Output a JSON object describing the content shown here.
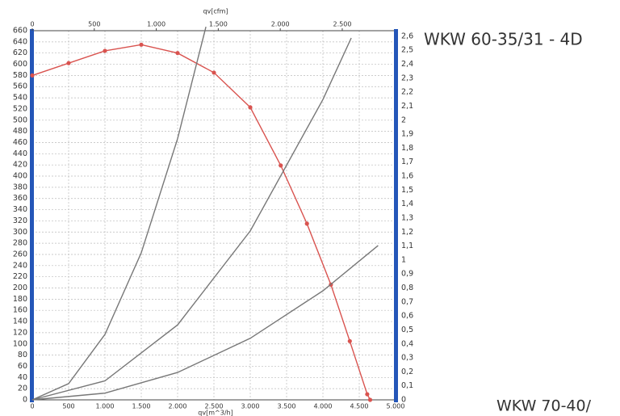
{
  "chart_data": {
    "type": "line",
    "title": "WKW 60-35/31 - 4D",
    "annotation": "WKW 70-40/",
    "xlabel": "qv[m^3/h]",
    "x2label": "qv[cfm]",
    "xlim": [
      0,
      5000
    ],
    "xticks": [
      0,
      500,
      {
        "value": 1000,
        "label": "1.000"
      },
      {
        "value": 1500,
        "label": "1.500"
      },
      {
        "value": 2000,
        "label": "2.000"
      },
      {
        "value": 2500,
        "label": "2.500"
      },
      {
        "value": 3000,
        "label": "3.000"
      },
      {
        "value": 3500,
        "label": "3.500"
      },
      {
        "value": 4000,
        "label": "4.000"
      },
      {
        "value": 4500,
        "label": "4.500"
      },
      {
        "value": 5000,
        "label": "5.000"
      }
    ],
    "x2lim": [
      0,
      2930
    ],
    "x2ticks": [
      0,
      500,
      {
        "value": 1000,
        "label": "1.000"
      },
      {
        "value": 1500,
        "label": "1.500"
      },
      {
        "value": 2000,
        "label": "2.000"
      },
      {
        "value": 2500,
        "label": "2.500"
      }
    ],
    "ylim": [
      0,
      660
    ],
    "yticks": [
      0,
      20,
      40,
      60,
      80,
      100,
      120,
      140,
      160,
      180,
      200,
      220,
      240,
      260,
      280,
      300,
      320,
      340,
      360,
      380,
      400,
      420,
      440,
      460,
      480,
      500,
      520,
      540,
      560,
      580,
      600,
      620,
      640,
      660
    ],
    "y2lim": [
      0,
      2.64
    ],
    "y2ticks": [
      0,
      {
        "value": 0.1,
        "label": "0,1"
      },
      {
        "value": 0.2,
        "label": "0,2"
      },
      {
        "value": 0.3,
        "label": "0,3"
      },
      {
        "value": 0.4,
        "label": "0,4"
      },
      {
        "value": 0.5,
        "label": "0,5"
      },
      {
        "value": 0.6,
        "label": "0,6"
      },
      {
        "value": 0.7,
        "label": "0,7"
      },
      {
        "value": 0.8,
        "label": "0,8"
      },
      {
        "value": 0.9,
        "label": "0,9"
      },
      1,
      {
        "value": 1.1,
        "label": "1,1"
      },
      {
        "value": 1.2,
        "label": "1,2"
      },
      {
        "value": 1.3,
        "label": "1,3"
      },
      {
        "value": 1.4,
        "label": "1,4"
      },
      {
        "value": 1.5,
        "label": "1,5"
      },
      {
        "value": 1.6,
        "label": "1,6"
      },
      {
        "value": 1.7,
        "label": "1,7"
      },
      {
        "value": 1.8,
        "label": "1,8"
      },
      {
        "value": 1.9,
        "label": "1,9"
      },
      2,
      {
        "value": 2.1,
        "label": "2,1"
      },
      {
        "value": 2.2,
        "label": "2,2"
      },
      {
        "value": 2.3,
        "label": "2,3"
      },
      {
        "value": 2.4,
        "label": "2,4"
      },
      {
        "value": 2.5,
        "label": "2,5"
      },
      {
        "value": 2.6,
        "label": "2,6"
      }
    ],
    "grid": true,
    "series": [
      {
        "color": "#d9534f",
        "markers": true,
        "x": [
          0,
          500,
          1000,
          1500,
          2000,
          2500,
          3000,
          3420,
          3780,
          4110,
          4370,
          4610,
          4650
        ],
        "values": [
          580,
          602,
          624,
          635,
          620,
          585,
          523,
          419,
          315,
          206,
          105,
          10,
          0
        ]
      },
      {
        "color": "#777777",
        "markers": false,
        "x": [
          0,
          500,
          1000,
          1500,
          2000,
          2390
        ],
        "values": [
          0,
          29,
          117,
          263,
          467,
          667
        ]
      },
      {
        "color": "#777777",
        "markers": false,
        "x": [
          0,
          1000,
          2000,
          3000,
          4000,
          4390
        ],
        "values": [
          0,
          34,
          134,
          302,
          537,
          647
        ]
      },
      {
        "color": "#777777",
        "markers": false,
        "x": [
          0,
          1000,
          2000,
          3000,
          4000,
          4760
        ],
        "values": [
          0,
          12,
          49,
          110,
          195,
          276
        ]
      }
    ]
  }
}
